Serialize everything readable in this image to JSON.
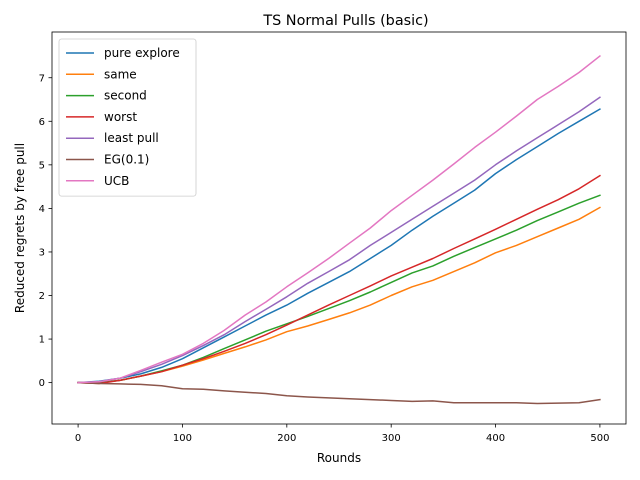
{
  "chart_data": {
    "type": "line",
    "title": "TS Normal Pulls (basic)",
    "xlabel": "Rounds",
    "ylabel": "Reduced regrets by free pull",
    "xlim": [
      -25,
      525
    ],
    "ylim": [
      -0.95,
      8.05
    ],
    "xticks": [
      0,
      100,
      200,
      300,
      400,
      500
    ],
    "yticks": [
      0,
      1,
      2,
      3,
      4,
      5,
      6,
      7
    ],
    "legend_position": "top-left",
    "series": [
      {
        "name": "pure explore",
        "color": "#1f77b4",
        "x": [
          0,
          20,
          40,
          60,
          80,
          100,
          120,
          140,
          160,
          180,
          200,
          220,
          240,
          260,
          280,
          300,
          320,
          340,
          360,
          380,
          400,
          420,
          440,
          460,
          480,
          500
        ],
        "y": [
          0,
          0.03,
          0.1,
          0.2,
          0.35,
          0.55,
          0.8,
          1.05,
          1.3,
          1.55,
          1.78,
          2.05,
          2.3,
          2.55,
          2.85,
          3.15,
          3.5,
          3.82,
          4.12,
          4.42,
          4.8,
          5.12,
          5.42,
          5.72,
          6.0,
          6.28
        ]
      },
      {
        "name": "same",
        "color": "#ff7f0e",
        "x": [
          0,
          20,
          40,
          60,
          80,
          100,
          120,
          140,
          160,
          180,
          200,
          220,
          240,
          260,
          280,
          300,
          320,
          340,
          360,
          380,
          400,
          420,
          440,
          460,
          480,
          500
        ],
        "y": [
          0,
          0.0,
          0.05,
          0.15,
          0.25,
          0.38,
          0.52,
          0.67,
          0.82,
          0.98,
          1.17,
          1.3,
          1.45,
          1.6,
          1.78,
          2.0,
          2.2,
          2.35,
          2.55,
          2.75,
          2.98,
          3.15,
          3.35,
          3.55,
          3.75,
          4.02
        ]
      },
      {
        "name": "second",
        "color": "#2ca02c",
        "x": [
          0,
          20,
          40,
          60,
          80,
          100,
          120,
          140,
          160,
          180,
          200,
          220,
          240,
          260,
          280,
          300,
          320,
          340,
          360,
          380,
          400,
          420,
          440,
          460,
          480,
          500
        ],
        "y": [
          0,
          0.0,
          0.05,
          0.15,
          0.27,
          0.4,
          0.58,
          0.78,
          0.98,
          1.18,
          1.35,
          1.52,
          1.7,
          1.88,
          2.08,
          2.3,
          2.52,
          2.68,
          2.9,
          3.1,
          3.3,
          3.5,
          3.72,
          3.92,
          4.12,
          4.3
        ]
      },
      {
        "name": "worst",
        "color": "#d62728",
        "x": [
          0,
          20,
          40,
          60,
          80,
          100,
          120,
          140,
          160,
          180,
          200,
          220,
          240,
          260,
          280,
          300,
          320,
          340,
          360,
          380,
          400,
          420,
          440,
          460,
          480,
          500
        ],
        "y": [
          0,
          -0.02,
          0.05,
          0.15,
          0.25,
          0.4,
          0.55,
          0.72,
          0.9,
          1.1,
          1.32,
          1.55,
          1.78,
          2.0,
          2.22,
          2.45,
          2.65,
          2.85,
          3.08,
          3.3,
          3.52,
          3.75,
          3.98,
          4.2,
          4.45,
          4.75
        ]
      },
      {
        "name": "least pull",
        "color": "#9467bd",
        "x": [
          0,
          20,
          40,
          60,
          80,
          100,
          120,
          140,
          160,
          180,
          200,
          220,
          240,
          260,
          280,
          300,
          320,
          340,
          360,
          380,
          400,
          420,
          440,
          460,
          480,
          500
        ],
        "y": [
          0,
          0.02,
          0.1,
          0.25,
          0.42,
          0.62,
          0.85,
          1.1,
          1.4,
          1.68,
          1.97,
          2.28,
          2.55,
          2.82,
          3.15,
          3.45,
          3.75,
          4.05,
          4.35,
          4.65,
          5.0,
          5.32,
          5.62,
          5.92,
          6.22,
          6.55
        ]
      },
      {
        "name": "EG(0.1)",
        "color": "#8c564b",
        "x": [
          0,
          20,
          40,
          60,
          80,
          100,
          120,
          140,
          160,
          180,
          200,
          220,
          240,
          260,
          280,
          300,
          320,
          340,
          360,
          380,
          400,
          420,
          440,
          460,
          480,
          500
        ],
        "y": [
          0,
          -0.02,
          -0.03,
          -0.04,
          -0.07,
          -0.14,
          -0.15,
          -0.19,
          -0.22,
          -0.25,
          -0.3,
          -0.33,
          -0.35,
          -0.37,
          -0.39,
          -0.41,
          -0.43,
          -0.42,
          -0.46,
          -0.46,
          -0.46,
          -0.46,
          -0.48,
          -0.47,
          -0.46,
          -0.39
        ]
      },
      {
        "name": "UCB",
        "color": "#e377c2",
        "x": [
          0,
          20,
          40,
          60,
          80,
          100,
          120,
          140,
          160,
          180,
          200,
          220,
          240,
          260,
          280,
          300,
          320,
          340,
          360,
          380,
          400,
          420,
          440,
          460,
          480,
          500
        ],
        "y": [
          0,
          0.02,
          0.1,
          0.28,
          0.47,
          0.65,
          0.9,
          1.2,
          1.55,
          1.85,
          2.2,
          2.52,
          2.85,
          3.2,
          3.55,
          3.95,
          4.3,
          4.65,
          5.02,
          5.4,
          5.75,
          6.12,
          6.5,
          6.8,
          7.12,
          7.5
        ]
      }
    ]
  }
}
